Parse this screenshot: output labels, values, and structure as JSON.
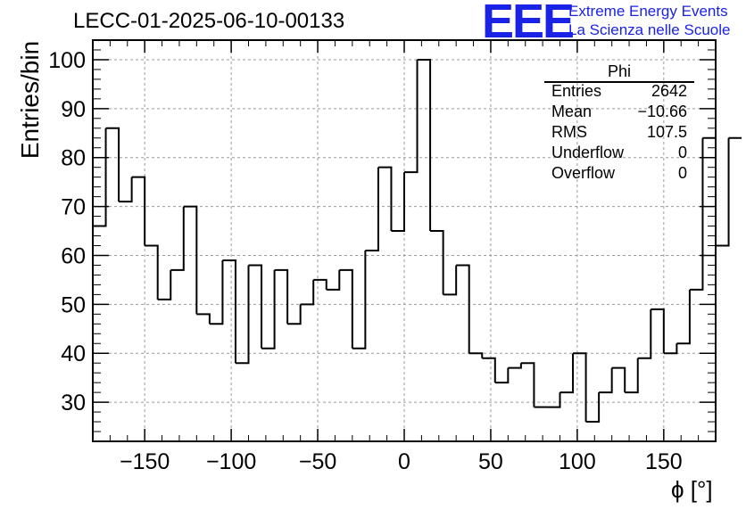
{
  "header": {
    "title": "LECC-01-2025-06-10-00133",
    "logo_text": "EEE",
    "logo_line1": "Extreme Energy Events",
    "logo_line2": "La Scienza nelle Scuole"
  },
  "stats": {
    "name": "Phi",
    "rows": [
      {
        "label": "Entries",
        "value": "2642"
      },
      {
        "label": "Mean",
        "value": "−10.66"
      },
      {
        "label": "RMS",
        "value": "107.5"
      },
      {
        "label": "Underflow",
        "value": "0"
      },
      {
        "label": "Overflow",
        "value": "0"
      }
    ]
  },
  "chart_data": {
    "type": "histogram",
    "title": "LECC-01-2025-06-10-00133",
    "xlabel": "ϕ [°]",
    "ylabel": "Entries/bin",
    "xlim": [
      -180,
      180
    ],
    "ylim": [
      22,
      104
    ],
    "grid": true,
    "bin_width": 7.5,
    "xticks": [
      -150,
      -100,
      -50,
      0,
      50,
      100,
      150
    ],
    "xtick_labels": [
      "−150",
      "−100",
      "−50",
      "0",
      "50",
      "100",
      "150"
    ],
    "yticks": [
      30,
      40,
      50,
      60,
      70,
      80,
      90,
      100
    ],
    "ytick_labels": [
      "30",
      "40",
      "50",
      "60",
      "70",
      "80",
      "90",
      "100"
    ],
    "values": [
      66,
      86,
      71,
      76,
      62,
      51,
      57,
      70,
      48,
      46,
      59,
      38,
      58,
      41,
      57,
      46,
      50,
      55,
      53,
      57,
      41,
      61,
      78,
      65,
      77,
      100,
      65,
      52,
      58,
      40,
      39,
      34,
      37,
      38,
      29,
      29,
      32,
      40,
      26,
      32,
      37,
      32,
      39,
      49,
      40,
      42,
      53,
      84,
      62,
      84
    ]
  }
}
